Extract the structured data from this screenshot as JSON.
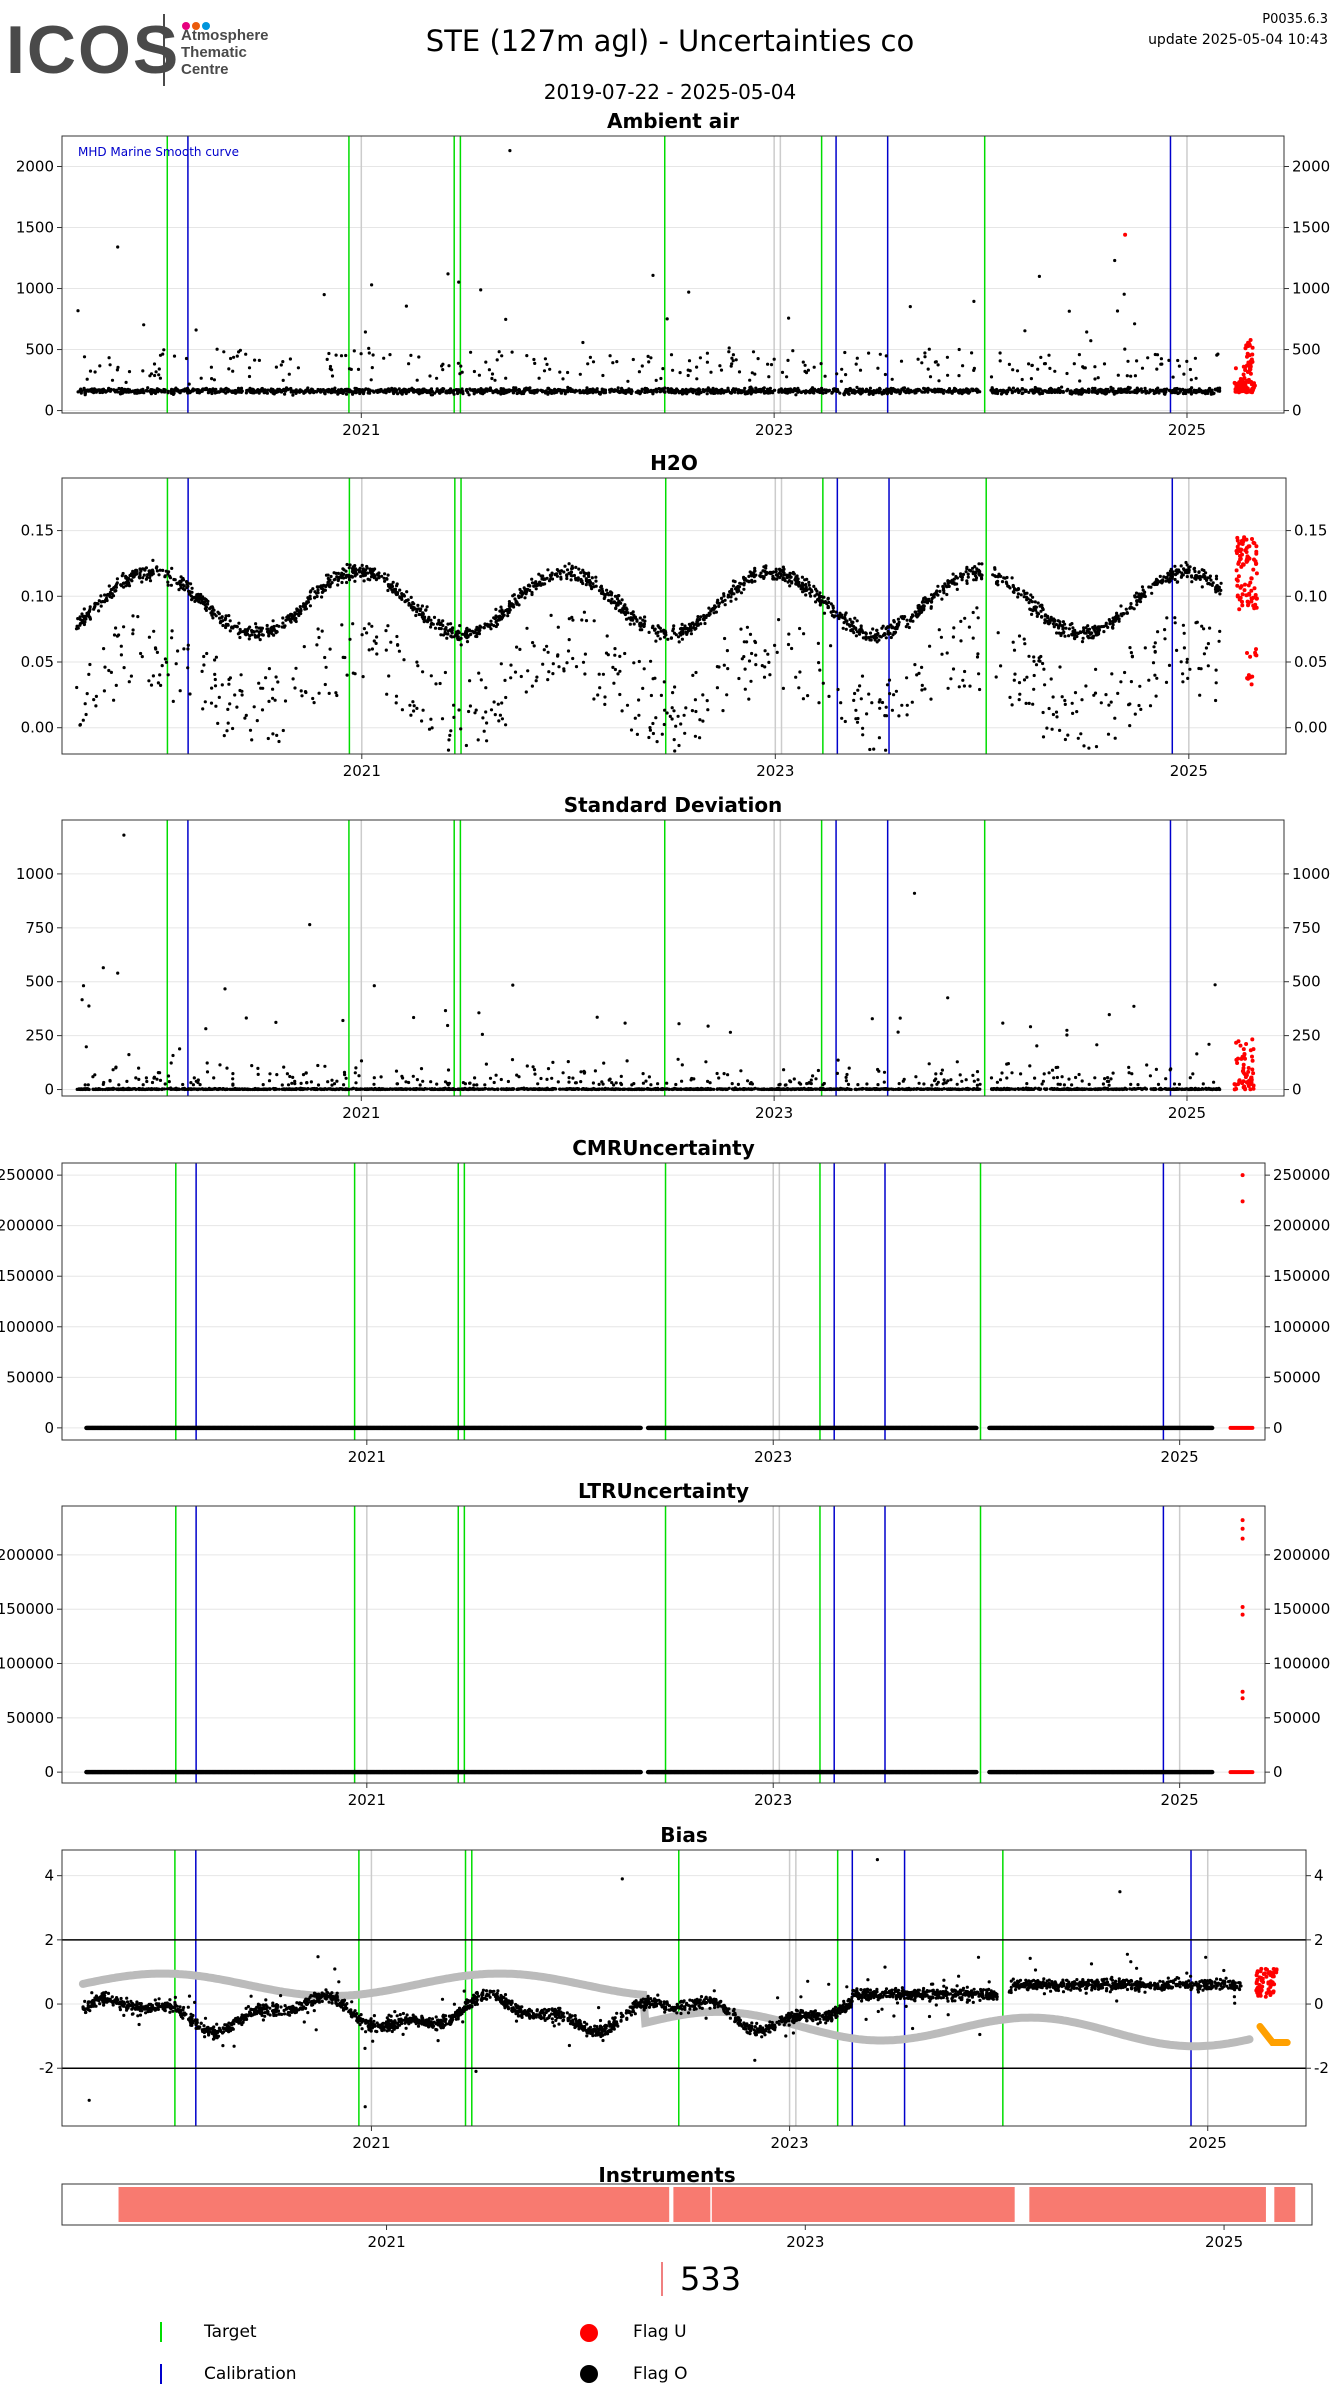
{
  "header": {
    "logo_text": "ICOS",
    "logo_sub_1": "Atmosphere",
    "logo_sub_2": "Thematic",
    "logo_sub_3": "Centre",
    "title": "STE  (127m agl) - Uncertainties co",
    "date_range": "2019-07-22 - 2025-05-04",
    "version": "P0035.6.3",
    "update": "update  2025-05-04 10:43"
  },
  "colors": {
    "target": "#00dd00",
    "calibration": "#0000cc",
    "flag_u": "#ff0000",
    "flag_o": "#000000",
    "instrument": "#f87a70",
    "smooth": "#bbbbbb",
    "orange": "#ffa000"
  },
  "chart_data": [
    {
      "type": "scatter",
      "title": "Ambient air",
      "annotation": "MHD Marine Smooth curve",
      "ylim": [
        -20,
        2250
      ],
      "yticks": [
        0,
        500,
        1000,
        1500,
        2000
      ],
      "xticks": [
        "2021",
        "2023",
        "2025"
      ],
      "base": 160,
      "spread": 40,
      "grid": true
    },
    {
      "type": "scatter",
      "title": "H2O",
      "ylim": [
        -0.02,
        0.19
      ],
      "yticks": [
        "0.00",
        "0.05",
        "0.10",
        "0.15"
      ],
      "xticks": [
        "2021",
        "2023",
        "2025"
      ],
      "grid": true
    },
    {
      "type": "scatter",
      "title": "Standard Deviation",
      "ylim": [
        -30,
        1250
      ],
      "yticks": [
        0,
        250,
        500,
        750,
        1000
      ],
      "xticks": [
        "2021",
        "2023",
        "2025"
      ],
      "grid": true
    },
    {
      "type": "scatter",
      "title": "CMRUncertainty",
      "ylim": [
        -12000,
        262000
      ],
      "yticks": [
        0,
        50000,
        100000,
        150000,
        200000,
        250000
      ],
      "xticks": [
        "2021",
        "2023",
        "2025"
      ],
      "flag_u_values": [
        250000,
        224000
      ],
      "grid": true
    },
    {
      "type": "scatter",
      "title": "LTRUncertainty",
      "ylim": [
        -10000,
        245000
      ],
      "yticks": [
        0,
        50000,
        100000,
        150000,
        200000
      ],
      "xticks": [
        "2021",
        "2023",
        "2025"
      ],
      "flag_u_values": [
        232000,
        224000,
        215000,
        152000,
        145000,
        74000,
        68000
      ],
      "grid": true
    },
    {
      "type": "scatter",
      "title": "Bias",
      "ylim": [
        -3.8,
        4.8
      ],
      "yticks": [
        -2,
        0,
        2,
        4
      ],
      "hlines": [
        -2,
        2
      ],
      "xticks": [
        "2021",
        "2023",
        "2025"
      ],
      "grid": true
    }
  ],
  "instruments": {
    "title": "Instruments",
    "xticks": [
      "2021",
      "2023",
      "2025"
    ],
    "segments": [
      [
        2019.72,
        2022.35
      ],
      [
        2022.37,
        2024.0
      ],
      [
        2024.07,
        2025.2
      ],
      [
        2025.24,
        2025.34
      ]
    ]
  },
  "legend": {
    "count": "533",
    "target_label": "Target",
    "calibration_label": "Calibration",
    "flag_u_label": "Flag U",
    "flag_o_label": "Flag O"
  }
}
